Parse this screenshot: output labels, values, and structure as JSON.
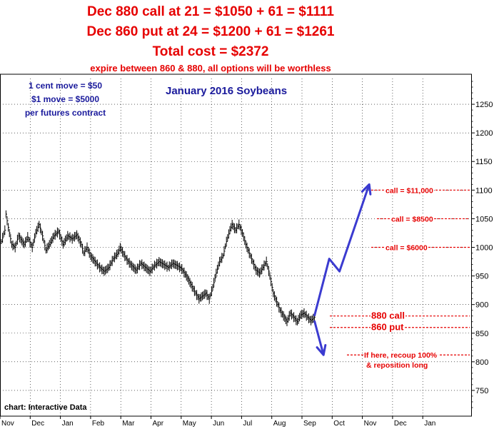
{
  "header": {
    "line1": "Dec 880 call at 21 = $1050 + 61 = $1111",
    "line2": "Dec 860 put at 24 = $1200 + 61 = $1261",
    "line3": "Total cost = $2372",
    "line4": "expire between 860 & 880, all options will be worthless"
  },
  "note": {
    "line1": "1 cent move = $50",
    "line2": "$1 move = $5000",
    "line3": "per futures contract"
  },
  "credit": "chart: Interactive Data",
  "colors": {
    "header_red": "#e60000",
    "arrow_blue": "#3b3bd0",
    "note_blue": "#1a1a9c",
    "level_red": "#e60000"
  },
  "chart_data": {
    "type": "ohlc",
    "title": "January 2016 Soybeans",
    "ylim": [
      705,
      1295
    ],
    "yticks": [
      750,
      800,
      850,
      900,
      950,
      1000,
      1050,
      1100,
      1150,
      1200,
      1250
    ],
    "month_labels": [
      "Nov",
      "Dec",
      "Jan",
      "Feb",
      "Mar",
      "Apr",
      "May",
      "Jun",
      "Jul",
      "Aug",
      "Sep",
      "Oct",
      "Nov",
      "Dec",
      "Jan"
    ],
    "grid": true,
    "price_path": [
      [
        0,
        1010
      ],
      [
        3,
        1030
      ],
      [
        4,
        1058
      ],
      [
        6,
        1035
      ],
      [
        9,
        1005
      ],
      [
        12,
        1000
      ],
      [
        15,
        1020
      ],
      [
        20,
        1005
      ],
      [
        23,
        1018
      ],
      [
        27,
        1000
      ],
      [
        30,
        1025
      ],
      [
        33,
        1040
      ],
      [
        36,
        1020
      ],
      [
        39,
        995
      ],
      [
        42,
        1005
      ],
      [
        46,
        1020
      ],
      [
        50,
        1028
      ],
      [
        54,
        1005
      ],
      [
        58,
        1020
      ],
      [
        62,
        1015
      ],
      [
        66,
        1022
      ],
      [
        70,
        1005
      ],
      [
        72,
        990
      ],
      [
        75,
        1000
      ],
      [
        78,
        985
      ],
      [
        82,
        975
      ],
      [
        86,
        965
      ],
      [
        90,
        958
      ],
      [
        94,
        965
      ],
      [
        98,
        980
      ],
      [
        102,
        990
      ],
      [
        104,
        1000
      ],
      [
        107,
        988
      ],
      [
        110,
        978
      ],
      [
        114,
        968
      ],
      [
        118,
        960
      ],
      [
        122,
        972
      ],
      [
        126,
        965
      ],
      [
        130,
        958
      ],
      [
        134,
        968
      ],
      [
        138,
        975
      ],
      [
        142,
        970
      ],
      [
        146,
        965
      ],
      [
        150,
        972
      ],
      [
        154,
        968
      ],
      [
        158,
        962
      ],
      [
        162,
        950
      ],
      [
        166,
        935
      ],
      [
        170,
        920
      ],
      [
        173,
        910
      ],
      [
        176,
        915
      ],
      [
        179,
        920
      ],
      [
        182,
        910
      ],
      [
        185,
        930
      ],
      [
        188,
        955
      ],
      [
        191,
        975
      ],
      [
        194,
        985
      ],
      [
        197,
        1010
      ],
      [
        200,
        1030
      ],
      [
        202,
        1040
      ],
      [
        205,
        1030
      ],
      [
        208,
        1040
      ],
      [
        211,
        1025
      ],
      [
        214,
        1005
      ],
      [
        217,
        990
      ],
      [
        220,
        975
      ],
      [
        223,
        960
      ],
      [
        226,
        955
      ],
      [
        229,
        965
      ],
      [
        232,
        975
      ],
      [
        235,
        950
      ],
      [
        238,
        920
      ],
      [
        241,
        905
      ],
      [
        244,
        890
      ],
      [
        247,
        880
      ],
      [
        250,
        870
      ],
      [
        253,
        885
      ],
      [
        256,
        878
      ],
      [
        259,
        870
      ],
      [
        262,
        882
      ],
      [
        265,
        885
      ],
      [
        268,
        878
      ],
      [
        271,
        872
      ],
      [
        274,
        878
      ]
    ],
    "arrow_path": [
      [
        274,
        880
      ],
      [
        287,
        980
      ],
      [
        296,
        958
      ],
      [
        322,
        1110
      ]
    ],
    "arrow_down_path": [
      [
        274,
        872
      ],
      [
        282,
        812
      ]
    ],
    "levels": [
      {
        "price": 1100,
        "label": "call = $11,000"
      },
      {
        "price": 1050,
        "label": "call = $8500"
      },
      {
        "price": 1000,
        "label": "call = $6000"
      },
      {
        "price": 880,
        "label": "880 call"
      },
      {
        "price": 860,
        "label": "860 put"
      },
      {
        "price": 812,
        "label": "If here, recoup 100%"
      }
    ],
    "reposition_label": "& reposition long"
  }
}
